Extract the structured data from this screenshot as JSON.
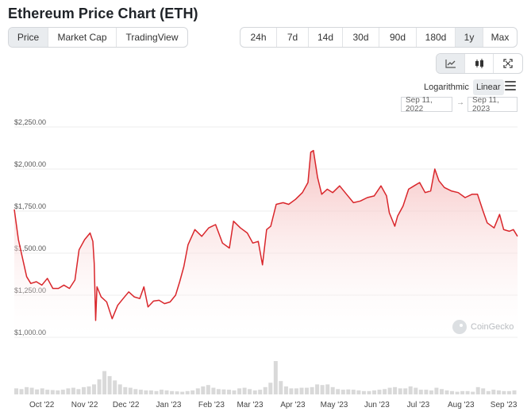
{
  "header": {
    "title": "Ethereum Price Chart (ETH)"
  },
  "view_tabs": [
    {
      "label": "Price",
      "active": true
    },
    {
      "label": "Market Cap",
      "active": false
    },
    {
      "label": "TradingView",
      "active": false
    }
  ],
  "range_tabs": [
    {
      "label": "24h",
      "active": false
    },
    {
      "label": "7d",
      "active": false
    },
    {
      "label": "14d",
      "active": false
    },
    {
      "label": "30d",
      "active": false
    },
    {
      "label": "90d",
      "active": false
    },
    {
      "label": "180d",
      "active": false
    },
    {
      "label": "1y",
      "active": true
    },
    {
      "label": "Max",
      "active": false
    }
  ],
  "tools": [
    {
      "icon": "line-chart-icon",
      "active": true
    },
    {
      "icon": "candlestick-icon",
      "active": false
    },
    {
      "icon": "fullscreen-icon",
      "active": false
    }
  ],
  "scale": {
    "log_label": "Logarithmic",
    "linear_label": "Linear",
    "selected": "Linear"
  },
  "date_range": {
    "from": "Sep 11, 2022",
    "to": "Sep 11, 2023",
    "separator": "→"
  },
  "watermark": {
    "text": "CoinGecko"
  },
  "colors": {
    "line": "#d9262b",
    "fill_top": "#f4b6b6",
    "grid": "#eeeeee",
    "volume": "#d9d9d9"
  },
  "chart_data": {
    "type": "area",
    "y_tick_labels": [
      "$2,250.00",
      "$2,000.00",
      "$1,750.00",
      "$1,500.00",
      "$1,250.00",
      "$1,000.00"
    ],
    "y_ticks": [
      2250,
      2000,
      1750,
      1500,
      1250,
      1000
    ],
    "ylim": [
      1000,
      2250
    ],
    "x_tick_labels": [
      "Oct '22",
      "Nov '22",
      "Dec '22",
      "Jan '23",
      "Feb '23",
      "Mar '23",
      "Apr '23",
      "May '23",
      "Jun '23",
      "Jul '23",
      "Aug '23",
      "Sep '23"
    ],
    "series": [
      {
        "x": [
          "2022-09-11",
          "2022-09-14",
          "2022-09-17",
          "2022-09-20",
          "2022-09-23",
          "2022-09-27",
          "2022-10-01",
          "2022-10-05",
          "2022-10-09",
          "2022-10-13",
          "2022-10-17",
          "2022-10-21",
          "2022-10-25",
          "2022-10-28",
          "2022-11-01",
          "2022-11-05",
          "2022-11-07",
          "2022-11-08",
          "2022-11-09",
          "2022-11-10",
          "2022-11-13",
          "2022-11-17",
          "2022-11-21",
          "2022-11-25",
          "2022-11-29",
          "2022-12-03",
          "2022-12-07",
          "2022-12-11",
          "2022-12-14",
          "2022-12-17",
          "2022-12-21",
          "2022-12-25",
          "2022-12-29",
          "2023-01-02",
          "2023-01-06",
          "2023-01-09",
          "2023-01-12",
          "2023-01-15",
          "2023-01-20",
          "2023-01-25",
          "2023-01-30",
          "2023-02-04",
          "2023-02-09",
          "2023-02-14",
          "2023-02-17",
          "2023-02-22",
          "2023-02-27",
          "2023-03-03",
          "2023-03-07",
          "2023-03-10",
          "2023-03-13",
          "2023-03-16",
          "2023-03-20",
          "2023-03-25",
          "2023-03-29",
          "2023-04-03",
          "2023-04-08",
          "2023-04-12",
          "2023-04-14",
          "2023-04-16",
          "2023-04-19",
          "2023-04-22",
          "2023-04-26",
          "2023-04-30",
          "2023-05-05",
          "2023-05-10",
          "2023-05-15",
          "2023-05-20",
          "2023-05-25",
          "2023-05-30",
          "2023-06-04",
          "2023-06-08",
          "2023-06-10",
          "2023-06-14",
          "2023-06-16",
          "2023-06-20",
          "2023-06-24",
          "2023-06-28",
          "2023-07-02",
          "2023-07-06",
          "2023-07-10",
          "2023-07-13",
          "2023-07-16",
          "2023-07-20",
          "2023-07-25",
          "2023-07-30",
          "2023-08-04",
          "2023-08-09",
          "2023-08-13",
          "2023-08-17",
          "2023-08-20",
          "2023-08-25",
          "2023-08-29",
          "2023-09-01",
          "2023-09-05",
          "2023-09-08",
          "2023-09-11"
        ],
        "y": [
          1760,
          1580,
          1470,
          1360,
          1320,
          1330,
          1310,
          1350,
          1290,
          1290,
          1310,
          1290,
          1340,
          1520,
          1580,
          1620,
          1570,
          1440,
          1100,
          1300,
          1240,
          1210,
          1110,
          1190,
          1230,
          1270,
          1240,
          1230,
          1300,
          1180,
          1215,
          1220,
          1200,
          1210,
          1250,
          1330,
          1420,
          1550,
          1640,
          1600,
          1650,
          1670,
          1560,
          1530,
          1690,
          1650,
          1620,
          1560,
          1570,
          1430,
          1640,
          1660,
          1790,
          1800,
          1790,
          1820,
          1860,
          1920,
          2100,
          2110,
          1950,
          1850,
          1880,
          1860,
          1900,
          1850,
          1800,
          1810,
          1830,
          1840,
          1900,
          1840,
          1740,
          1660,
          1720,
          1780,
          1880,
          1900,
          1920,
          1860,
          1870,
          2000,
          1930,
          1890,
          1870,
          1860,
          1830,
          1850,
          1850,
          1750,
          1680,
          1650,
          1730,
          1640,
          1630,
          1640,
          1600
        ]
      }
    ],
    "volume_series": {
      "name": "Volume",
      "relative": [
        0.18,
        0.16,
        0.22,
        0.2,
        0.15,
        0.18,
        0.14,
        0.13,
        0.12,
        0.14,
        0.18,
        0.2,
        0.16,
        0.22,
        0.24,
        0.3,
        0.45,
        0.7,
        0.55,
        0.42,
        0.3,
        0.22,
        0.2,
        0.16,
        0.14,
        0.12,
        0.12,
        0.1,
        0.14,
        0.12,
        0.1,
        0.09,
        0.08,
        0.1,
        0.12,
        0.18,
        0.24,
        0.28,
        0.2,
        0.16,
        0.15,
        0.14,
        0.12,
        0.18,
        0.2,
        0.16,
        0.12,
        0.14,
        0.22,
        0.35,
        1.0,
        0.4,
        0.24,
        0.18,
        0.18,
        0.2,
        0.2,
        0.22,
        0.3,
        0.28,
        0.3,
        0.22,
        0.16,
        0.14,
        0.15,
        0.14,
        0.12,
        0.1,
        0.1,
        0.12,
        0.14,
        0.16,
        0.2,
        0.22,
        0.18,
        0.18,
        0.24,
        0.2,
        0.14,
        0.14,
        0.12,
        0.2,
        0.16,
        0.12,
        0.1,
        0.08,
        0.1,
        0.1,
        0.08,
        0.22,
        0.18,
        0.1,
        0.14,
        0.12,
        0.1,
        0.1,
        0.12
      ]
    }
  }
}
